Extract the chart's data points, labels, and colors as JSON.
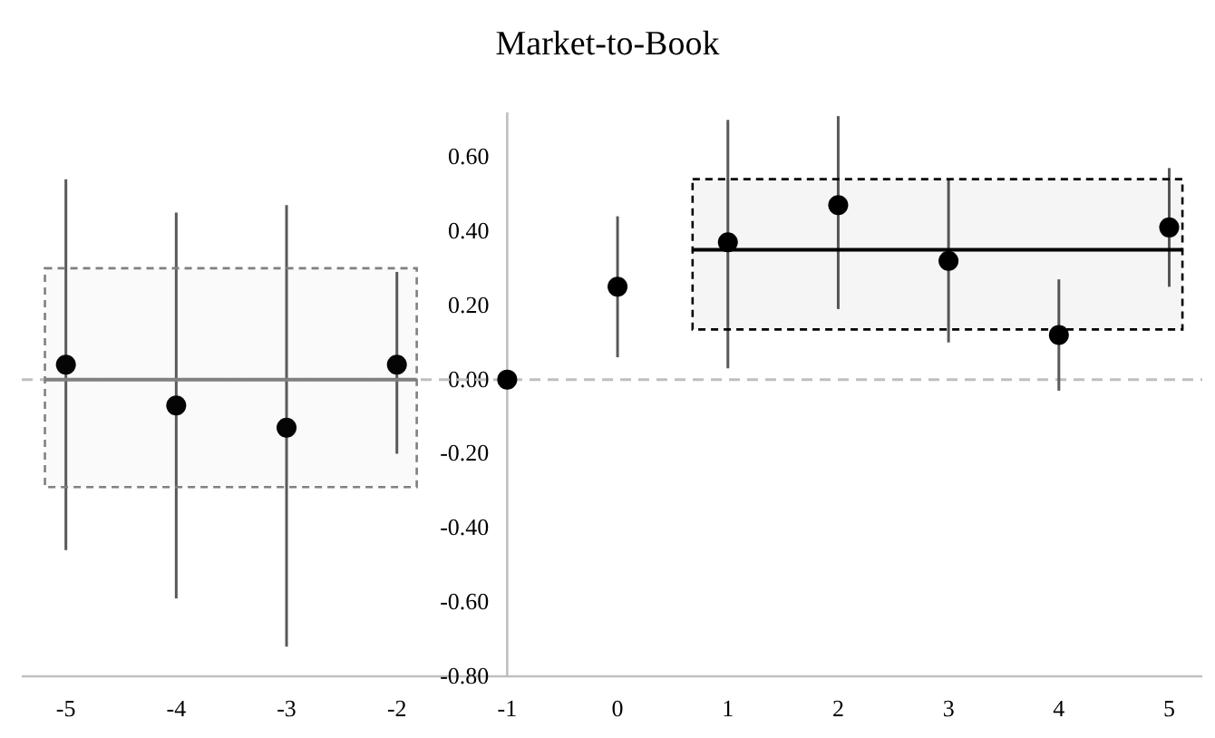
{
  "chart_data": {
    "type": "scatter",
    "title": "Market-to-Book",
    "x": [
      -5,
      -4,
      -3,
      -2,
      -1,
      0,
      1,
      2,
      3,
      4,
      5
    ],
    "xlim": [
      -5.4,
      5.3
    ],
    "xticks": [
      -5,
      -4,
      -3,
      -2,
      -1,
      0,
      1,
      2,
      3,
      4,
      5
    ],
    "ylim": [
      -0.8,
      0.72
    ],
    "yticks": [
      {
        "value": -0.8,
        "label": "-0.80"
      },
      {
        "value": -0.6,
        "label": "-0.60"
      },
      {
        "value": -0.4,
        "label": "-0.40"
      },
      {
        "value": -0.2,
        "label": "-0.20"
      },
      {
        "value": 0,
        "label": "0.00"
      },
      {
        "value": 0.2,
        "label": "0.20"
      },
      {
        "value": 0.4,
        "label": "0.40"
      },
      {
        "value": 0.6,
        "label": "0.60"
      }
    ],
    "grid": false,
    "marker": "circle",
    "series": [
      {
        "color": "#000000",
        "values": [
          0.04,
          -0.07,
          -0.13,
          0.04,
          0,
          0.25,
          0.37,
          0.47,
          0.32,
          0.12,
          0.41
        ],
        "errors": [
          [
            -0.46,
            0.54
          ],
          [
            -0.59,
            0.45
          ],
          [
            -0.72,
            0.47
          ],
          [
            -0.2,
            0.29
          ],
          null,
          [
            0.06,
            0.44
          ],
          [
            0.03,
            0.7
          ],
          [
            0.19,
            0.71
          ],
          [
            0.1,
            0.54
          ],
          [
            -0.03,
            0.27
          ],
          [
            0.25,
            0.57
          ]
        ]
      },
      {
        "type": "line",
        "marker": "none",
        "color": "#808080",
        "x": [
          -5.19,
          -1.82
        ],
        "values": [
          0,
          0
        ],
        "lower": [
          -0.29,
          -0.29
        ],
        "upper": [
          0.3,
          0.3
        ]
      },
      {
        "type": "line",
        "marker": "none",
        "color": "#000000",
        "x": [
          0.68,
          5.12
        ],
        "values": [
          0.35,
          0.35
        ],
        "lower": [
          0.135,
          0.135
        ],
        "upper": [
          0.54,
          0.54
        ]
      }
    ],
    "ref_lines": [
      {
        "axis": "y",
        "value": 0,
        "color": "#bfbfbf",
        "line_style": "dashed"
      }
    ]
  }
}
